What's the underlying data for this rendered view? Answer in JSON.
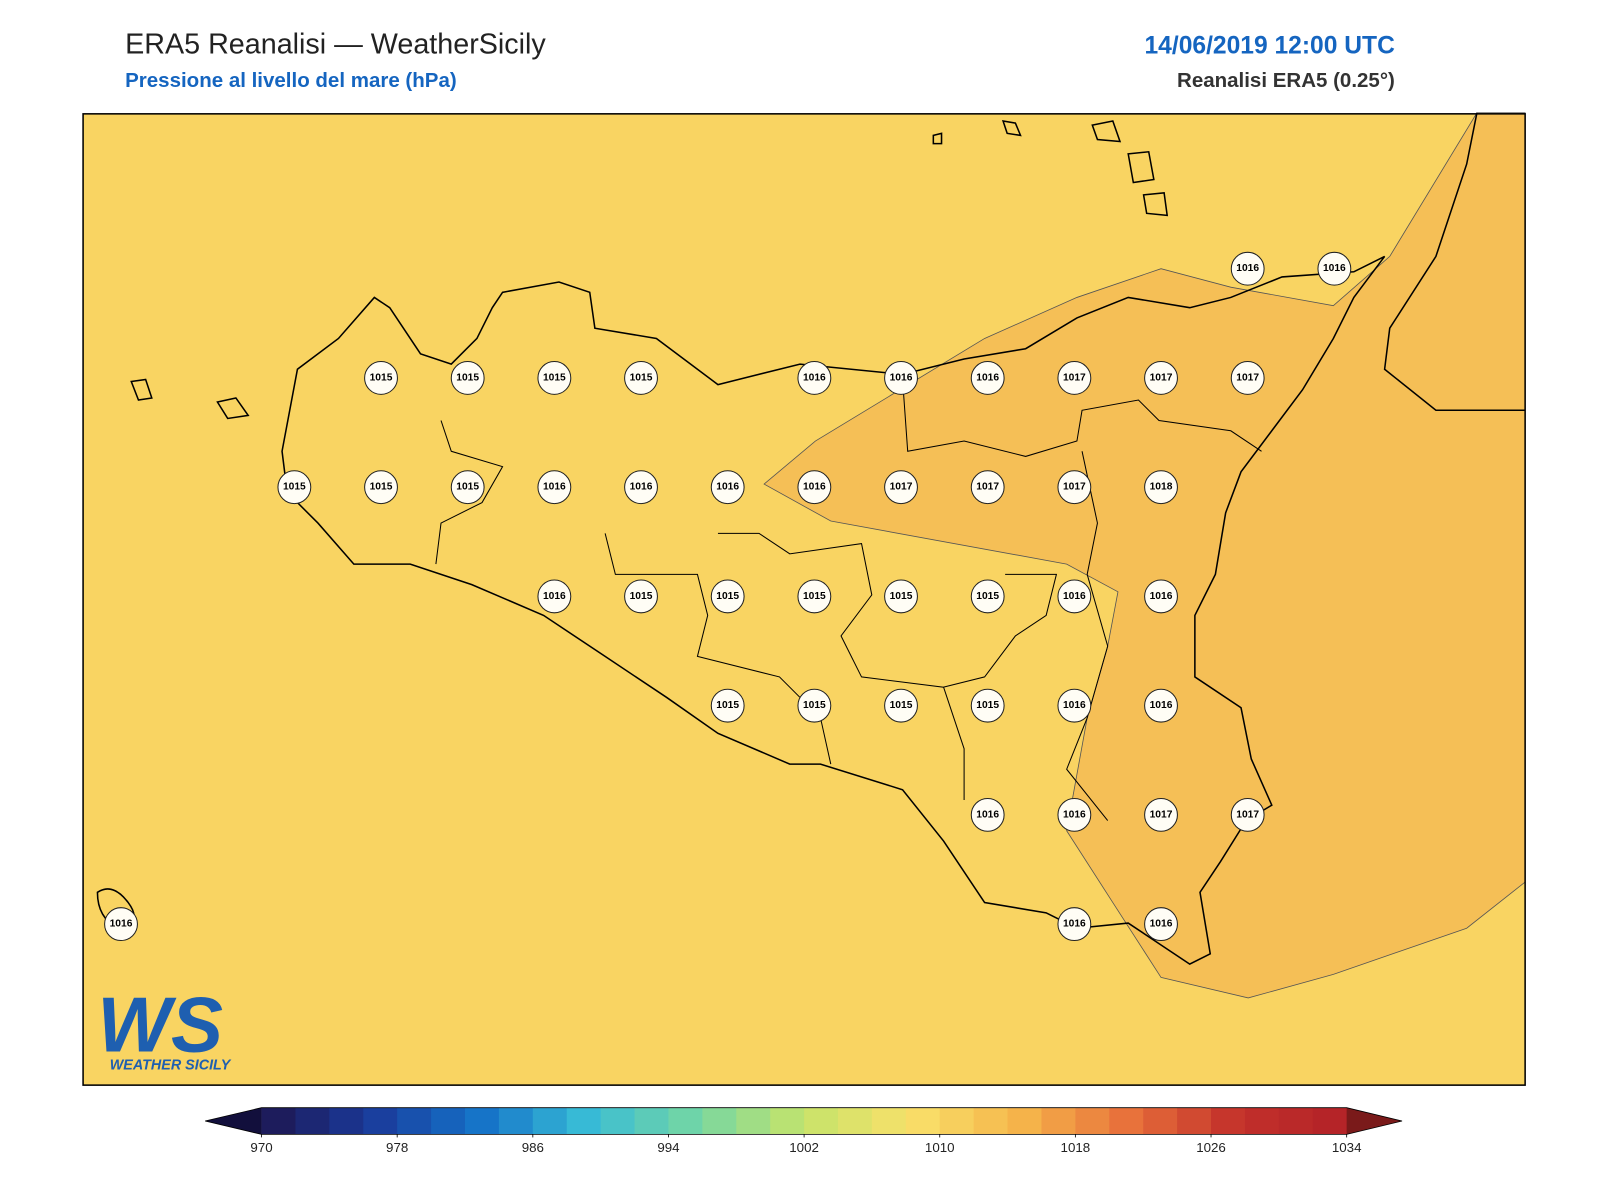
{
  "header": {
    "title": "ERA5 Reanalisi — WeatherSicily",
    "subtitle": "Pressione al livello del mare (hPa)",
    "date": "14/06/2019 12:00 UTC",
    "source": "Reanalisi ERA5 (0.25°)"
  },
  "map": {
    "fill": "#f9d462",
    "band_fill": "#f5bf56",
    "stations": [
      [
        null,
        null,
        null,
        null,
        null,
        null,
        null,
        null,
        null,
        null,
        null,
        null,
        null,
        1016,
        1016
      ],
      [
        null,
        null,
        null,
        1015,
        1015,
        1015,
        1015,
        null,
        1016,
        1016,
        1016,
        1017,
        1017,
        1017,
        null
      ],
      [
        null,
        null,
        1015,
        1015,
        1015,
        1016,
        1016,
        1016,
        1016,
        1017,
        1017,
        1017,
        1018,
        null,
        null
      ],
      [
        null,
        null,
        null,
        null,
        null,
        1016,
        1015,
        1015,
        1015,
        1015,
        1015,
        1016,
        1016,
        null,
        null
      ],
      [
        null,
        null,
        null,
        null,
        null,
        null,
        null,
        1015,
        1015,
        1015,
        1015,
        1016,
        1016,
        null,
        null
      ],
      [
        null,
        null,
        null,
        null,
        null,
        null,
        null,
        null,
        null,
        null,
        1016,
        1016,
        1017,
        1017,
        null
      ],
      [
        1016,
        null,
        null,
        null,
        null,
        null,
        null,
        null,
        null,
        null,
        null,
        1016,
        1016,
        null,
        null
      ]
    ]
  },
  "logo": {
    "text": "WS",
    "caption": "WEATHER SICILY"
  },
  "colorbar": {
    "range": [
      970,
      1034
    ],
    "step": 2,
    "ticks": [
      970,
      978,
      986,
      994,
      1002,
      1010,
      1018,
      1026,
      1034
    ],
    "colormap": [
      "#1e1650",
      "#1a3a9a",
      "#1572c8",
      "#38bcd6",
      "#74d6a4",
      "#c6e46a",
      "#f9e06a",
      "#f5b54a",
      "#e8703a",
      "#c2302a",
      "#b22228"
    ],
    "under_color": "#120f3c",
    "over_color": "#7a1a1a"
  }
}
